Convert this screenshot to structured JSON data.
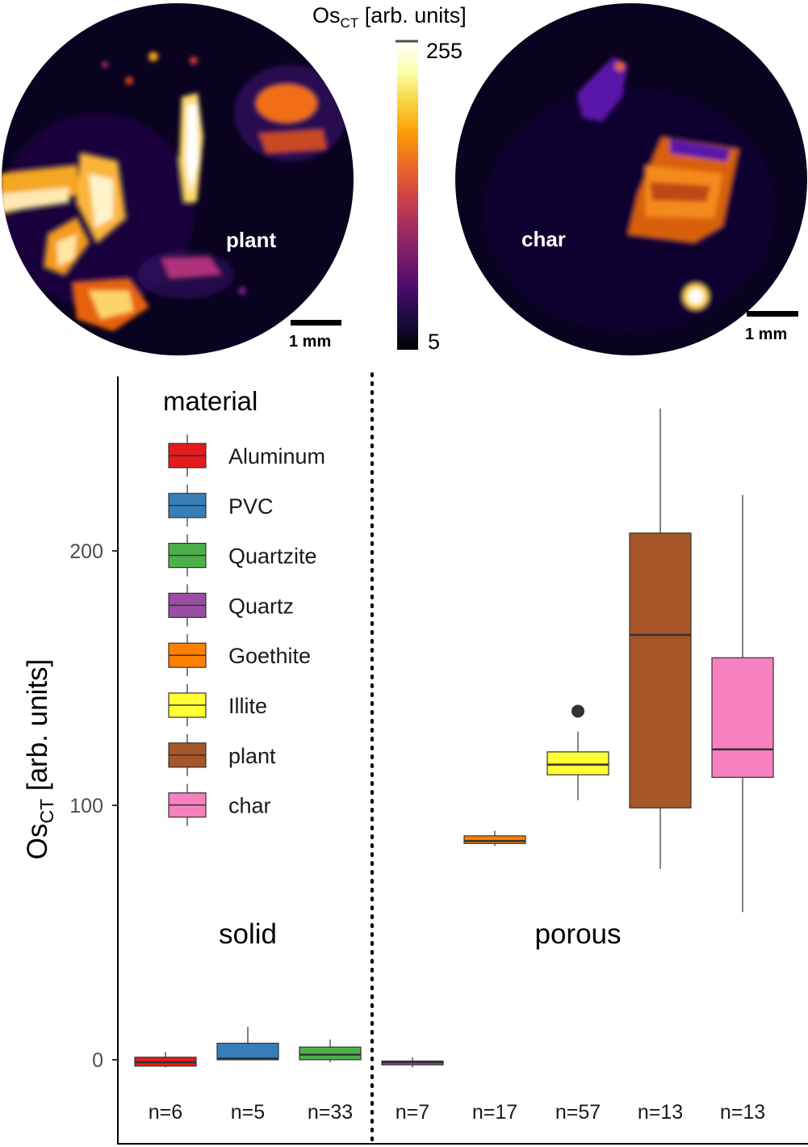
{
  "images": {
    "left": {
      "label": "plant",
      "scale_bar": "1 mm"
    },
    "right": {
      "label": "char",
      "scale_bar": "1 mm"
    }
  },
  "colorbar": {
    "title_main": "Os",
    "title_sub": "CT",
    "title_rest": " [arb. units]",
    "max_label": "255",
    "min_label": "5",
    "colors": [
      "#000004",
      "#1b0c41",
      "#4a0c6b",
      "#781c6d",
      "#a52c60",
      "#cf4446",
      "#ed6925",
      "#fb9b06",
      "#f7d13d",
      "#fcffa4",
      "#ffffff"
    ]
  },
  "chart_data": {
    "type": "box",
    "ylabel_main": "Os",
    "ylabel_sub": "CT",
    "ylabel_rest": " [arb. units]",
    "y_ticks": [
      0,
      100,
      200
    ],
    "ylim": [
      -35,
      270
    ],
    "legend_title": "material",
    "groups": [
      {
        "label": "solid",
        "categories": [
          "Aluminum",
          "PVC",
          "Quartzite"
        ]
      },
      {
        "label": "porous",
        "categories": [
          "Quartz",
          "Goethite",
          "Illite",
          "plant",
          "char"
        ]
      }
    ],
    "series": [
      {
        "name": "Aluminum",
        "color": "#e41a1c",
        "n_label": "n=6",
        "min": -3,
        "q1": -2.5,
        "median": -1,
        "q3": 1,
        "max": 3,
        "outliers": []
      },
      {
        "name": "PVC",
        "color": "#377eb8",
        "n_label": "n=5",
        "min": 0,
        "q1": 0,
        "median": 0.5,
        "q3": 6.5,
        "max": 13,
        "outliers": []
      },
      {
        "name": "Quartzite",
        "color": "#4daf4a",
        "n_label": "n=33",
        "min": -1,
        "q1": 0,
        "median": 2,
        "q3": 5,
        "max": 8,
        "outliers": []
      },
      {
        "name": "Quartz",
        "color": "#984ea3",
        "n_label": "n=7",
        "min": -3,
        "q1": -2,
        "median": -1,
        "q3": -0.5,
        "max": 1,
        "outliers": []
      },
      {
        "name": "Goethite",
        "color": "#ff7f00",
        "n_label": "n=17",
        "min": 84,
        "q1": 85,
        "median": 86,
        "q3": 88,
        "max": 90,
        "outliers": []
      },
      {
        "name": "Illite",
        "color": "#ffff33",
        "n_label": "n=57",
        "min": 102,
        "q1": 112,
        "median": 116,
        "q3": 121,
        "max": 129,
        "outliers": [
          137
        ]
      },
      {
        "name": "plant",
        "color": "#a65628",
        "n_label": "n=13",
        "min": 75,
        "q1": 99,
        "median": 167,
        "q3": 207,
        "max": 256,
        "outliers": []
      },
      {
        "name": "char",
        "color": "#f781bf",
        "n_label": "n=13",
        "min": 58,
        "q1": 111,
        "median": 122,
        "q3": 158,
        "max": 222,
        "outliers": []
      }
    ]
  }
}
